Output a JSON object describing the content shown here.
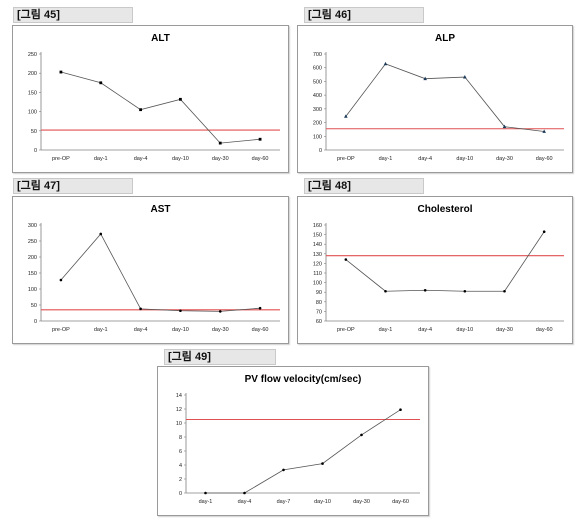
{
  "figures": [
    {
      "label": "[그림 45]"
    },
    {
      "label": "[그림 46]"
    },
    {
      "label": "[그림 47]"
    },
    {
      "label": "[그림 48]"
    },
    {
      "label": "[그림 49]"
    }
  ],
  "colors": {
    "series_line": "#555555",
    "reference_line": "#e05050",
    "axis": "#808080"
  },
  "chart_data": [
    {
      "type": "line",
      "title": "ALT",
      "categories": [
        "pre-OP",
        "day-1",
        "day-4",
        "day-10",
        "day-30",
        "day-60"
      ],
      "values": [
        203,
        175,
        105,
        132,
        18,
        28
      ],
      "reference_line": 52,
      "ylim": [
        0,
        250
      ],
      "yticks": [
        0,
        50,
        100,
        150,
        200,
        250
      ],
      "marker": "square",
      "grid": false,
      "legend": "none"
    },
    {
      "type": "line",
      "title": "ALP",
      "categories": [
        "pre-OP",
        "day-1",
        "day-4",
        "day-10",
        "day-30",
        "day-60"
      ],
      "values": [
        245,
        628,
        520,
        532,
        170,
        135
      ],
      "reference_line": 155,
      "ylim": [
        0,
        700
      ],
      "yticks": [
        0,
        100,
        200,
        300,
        400,
        500,
        600,
        700
      ],
      "marker": "triangle",
      "grid": false,
      "legend": "none"
    },
    {
      "type": "line",
      "title": "AST",
      "categories": [
        "pre-OP",
        "day-1",
        "day-4",
        "day-10",
        "day-30",
        "day-60"
      ],
      "values": [
        128,
        272,
        38,
        32,
        30,
        40
      ],
      "reference_line": 35,
      "ylim": [
        0,
        300
      ],
      "yticks": [
        0,
        50,
        100,
        150,
        200,
        250,
        300
      ],
      "marker": "circle",
      "grid": false,
      "legend": "none"
    },
    {
      "type": "line",
      "title": "Cholesterol",
      "categories": [
        "pre-OP",
        "day-1",
        "day-4",
        "day-10",
        "day-30",
        "day-60"
      ],
      "values": [
        124,
        91,
        92,
        91,
        91,
        153
      ],
      "reference_line": 128,
      "ylim": [
        60,
        160
      ],
      "yticks": [
        60,
        70,
        80,
        90,
        100,
        110,
        120,
        130,
        140,
        150,
        160
      ],
      "marker": "circle",
      "grid": false,
      "legend": "none"
    },
    {
      "type": "line",
      "title": "PV flow velocity(cm/sec)",
      "categories": [
        "day-1",
        "day-4",
        "day-7",
        "day-10",
        "day-30",
        "day-60"
      ],
      "values": [
        0,
        0,
        3.3,
        4.2,
        8.3,
        11.9
      ],
      "reference_line": 10.5,
      "ylim": [
        0,
        14
      ],
      "yticks": [
        0,
        2,
        4,
        6,
        8,
        10,
        12,
        14
      ],
      "marker": "circle",
      "grid": false,
      "legend": "none"
    }
  ]
}
